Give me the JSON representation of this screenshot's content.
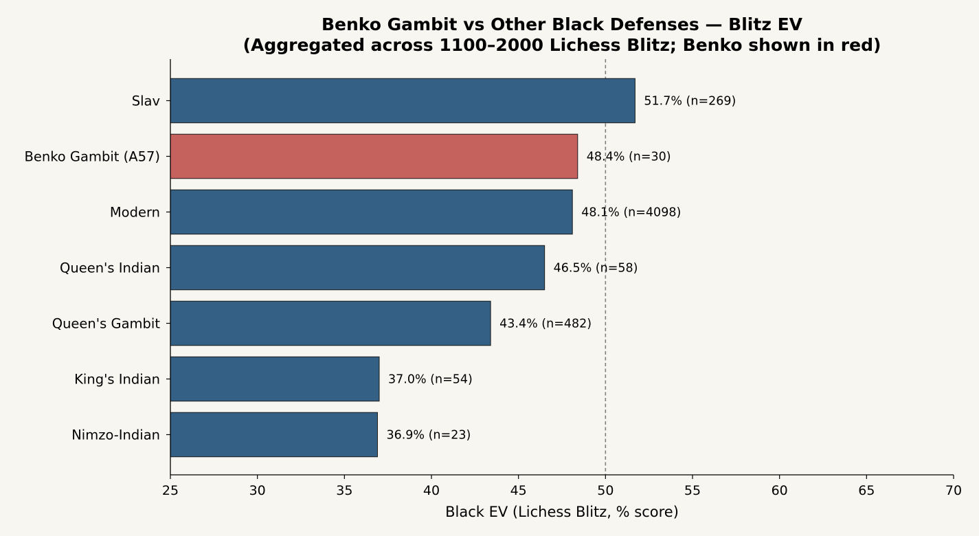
{
  "chart_data": {
    "type": "bar",
    "orientation": "horizontal",
    "title": "Benko Gambit vs Other Black Defenses — Blitz EV",
    "subtitle": "(Aggregated across 1100–2000 Lichess Blitz; Benko shown in red)",
    "xlabel": "Black EV (Lichess Blitz, % score)",
    "ylabel": "",
    "xlim": [
      25,
      70
    ],
    "xticks": [
      25,
      30,
      35,
      40,
      45,
      50,
      55,
      60,
      65,
      70
    ],
    "reference_line": 50,
    "grid": false,
    "categories": [
      "Slav",
      "Benko Gambit (A57)",
      "Modern",
      "Queen's Indian",
      "Queen's Gambit",
      "King's Indian",
      "Nimzo-Indian"
    ],
    "values": [
      51.7,
      48.4,
      48.1,
      46.5,
      43.4,
      37.0,
      36.9
    ],
    "data_labels": [
      "51.7% (n=269)",
      "48.4% (n=30)",
      "48.1% (n=4098)",
      "46.5% (n=58)",
      "43.4% (n=482)",
      "37.0% (n=54)",
      "36.9% (n=23)"
    ],
    "highlight_category": "Benko Gambit (A57)",
    "colors": {
      "bar": "#336084",
      "highlight": "#c5625e",
      "edge": "#1a1a1a",
      "reference_line": "#808080",
      "background": "#f8f6f1"
    }
  }
}
